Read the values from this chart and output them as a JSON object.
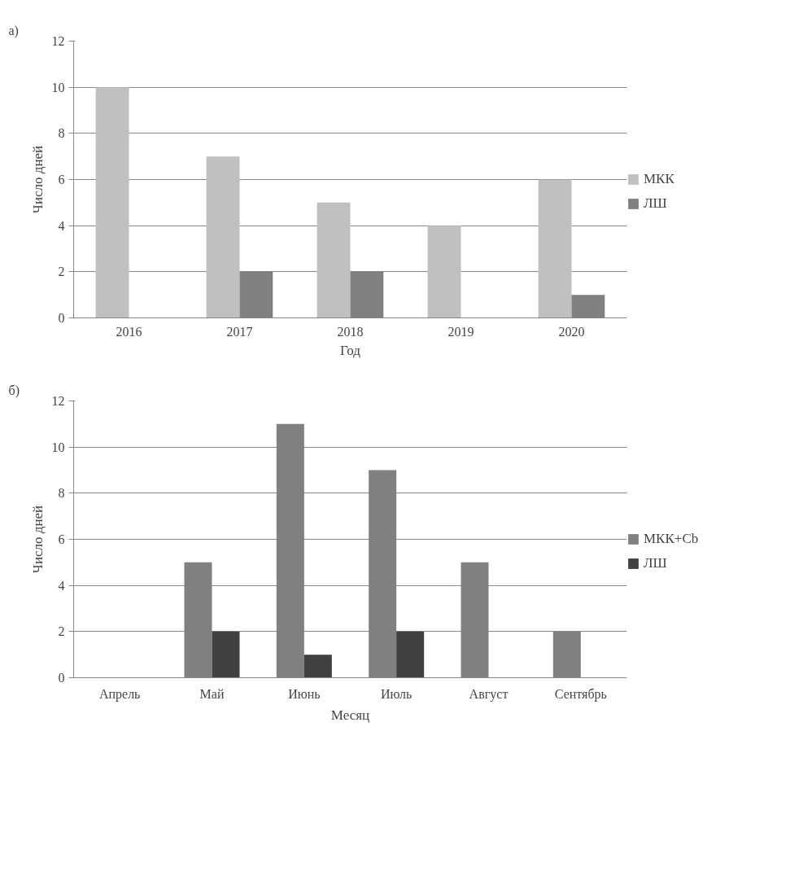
{
  "chart_data": [
    {
      "type": "bar",
      "annotations": [
        "а)"
      ],
      "xlabel": "Год",
      "ylabel": "Число дней",
      "categories": [
        "2016",
        "2017",
        "2018",
        "2019",
        "2020"
      ],
      "series": [
        {
          "name": "МКК",
          "color": "#c0c0c0",
          "values": [
            10,
            7,
            5,
            4,
            6
          ]
        },
        {
          "name": "ЛШ",
          "color": "#808080",
          "values": [
            0,
            2,
            2,
            0,
            1
          ]
        }
      ],
      "ylim": [
        0,
        12
      ],
      "yticks": [
        0,
        2,
        4,
        6,
        8,
        10,
        12
      ],
      "grid": "y",
      "legend": "right"
    },
    {
      "type": "bar",
      "annotations": [
        "б)"
      ],
      "xlabel": "Месяц",
      "ylabel": "Число дней",
      "categories": [
        "Апрель",
        "Май",
        "Июнь",
        "Июль",
        "Август",
        "Сентябрь"
      ],
      "series": [
        {
          "name": "МКК+Cb",
          "color": "#808080",
          "values": [
            0,
            5,
            11,
            9,
            5,
            2
          ]
        },
        {
          "name": "ЛШ",
          "color": "#404040",
          "values": [
            0,
            2,
            1,
            2,
            0,
            0
          ]
        }
      ],
      "ylim": [
        0,
        12
      ],
      "yticks": [
        0,
        2,
        4,
        6,
        8,
        10,
        12
      ],
      "grid": "y",
      "legend": "right"
    }
  ]
}
